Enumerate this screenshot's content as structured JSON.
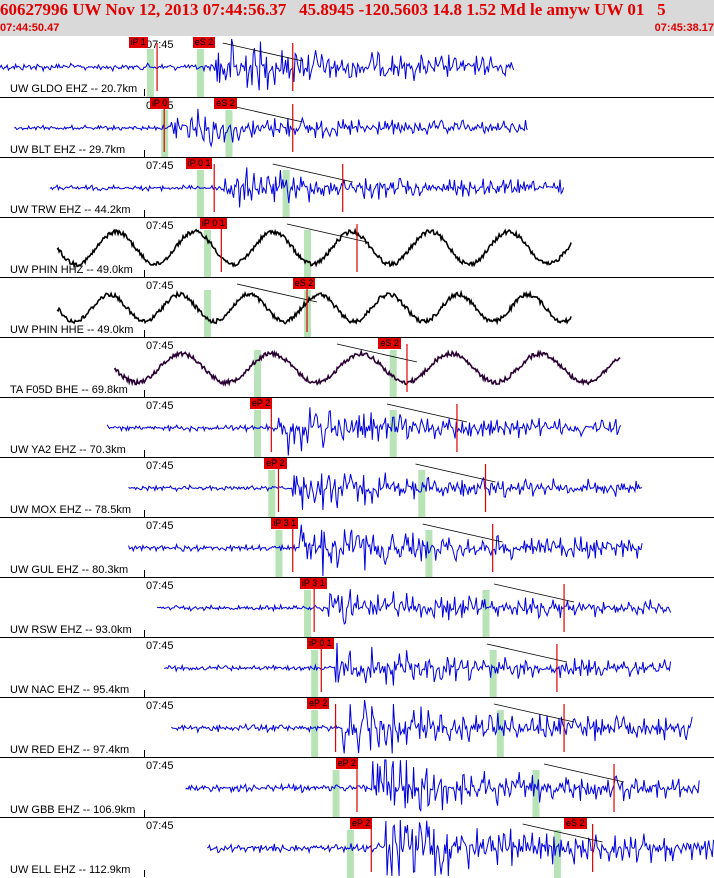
{
  "header": {
    "title": "60627996 UW Nov 12, 2013 07:44:56.37   45.8945 -120.5603 14.8 1.52 Md le amyw UW 01   5",
    "time_start": "07:44:50.47",
    "time_end": "07:45:38.17"
  },
  "colors": {
    "header_bg": "#d9d9d9",
    "header_text": "#e00000",
    "trace_blue": "#0000dd",
    "trace_black": "#000000",
    "trace_dark_purple": "#2a0033",
    "pick_red": "#e00000",
    "window_green": "#b7e3b7"
  },
  "tick_label": "07:45",
  "traces": [
    {
      "label": "UW GLDO EHZ -- 20.7km",
      "color": "blue",
      "start": 0.0,
      "end": 0.72,
      "amp": 12,
      "freq": 1.6,
      "event": 0.3,
      "picks": [
        {
          "text": "iP 1",
          "pos": 0.18
        },
        {
          "text": "eS 2",
          "pos": 0.27
        }
      ],
      "green": [
        0.21,
        0.28
      ],
      "red_lines": [
        0.22,
        0.41
      ]
    },
    {
      "label": "UW BLT EHZ -- 29.7km",
      "color": "blue",
      "start": 0.02,
      "end": 0.74,
      "amp": 8,
      "freq": 1.6,
      "event": 0.24,
      "picks": [
        {
          "text": "iP 0",
          "pos": 0.21
        },
        {
          "text": "eS 2",
          "pos": 0.3
        }
      ],
      "green": [
        0.23,
        0.32
      ],
      "red_lines": [
        0.23,
        0.41
      ]
    },
    {
      "label": "UW TRW EHZ -- 44.2km",
      "color": "blue",
      "start": 0.07,
      "end": 0.79,
      "amp": 9,
      "freq": 1.7,
      "event": 0.31,
      "picks": [
        {
          "text": "iP 0 1",
          "pos": 0.26
        }
      ],
      "green": [
        0.28,
        0.4
      ],
      "red_lines": [
        0.3,
        0.48
      ]
    },
    {
      "label": "UW PHIN HHZ -- 49.0km",
      "color": "black",
      "start": 0.08,
      "end": 0.8,
      "amp": 18,
      "freq": 0.08,
      "event": 0.45,
      "picks": [
        {
          "text": "iP 0 1",
          "pos": 0.28
        }
      ],
      "green": [
        0.29,
        0.43
      ],
      "red_lines": [
        0.31,
        0.5
      ]
    },
    {
      "label": "UW PHIN HHE -- 49.0km",
      "color": "black",
      "start": 0.08,
      "end": 0.8,
      "amp": 15,
      "freq": 0.09,
      "event": 0.45,
      "picks": [
        {
          "text": "eS 2",
          "pos": 0.41
        }
      ],
      "green": [
        0.29,
        0.43
      ],
      "red_lines": [
        0.43
      ]
    },
    {
      "label": "TA F05D BHE -- 69.8km",
      "color": "dark_purple",
      "start": 0.16,
      "end": 0.87,
      "amp": 16,
      "freq": 0.07,
      "event": 0.58,
      "picks": [
        {
          "text": "eS 2",
          "pos": 0.53
        }
      ],
      "green": [
        0.36,
        0.55
      ],
      "red_lines": [
        0.57
      ]
    },
    {
      "label": "UW YA2 EHZ -- 70.3km",
      "color": "blue",
      "start": 0.15,
      "end": 0.87,
      "amp": 10,
      "freq": 1.6,
      "event": 0.39,
      "picks": [
        {
          "text": "eP 2",
          "pos": 0.35
        }
      ],
      "green": [
        0.36,
        0.55
      ],
      "red_lines": [
        0.38,
        0.64
      ]
    },
    {
      "label": "UW MOX EHZ -- 78.5km",
      "color": "blue",
      "start": 0.18,
      "end": 0.9,
      "amp": 9,
      "freq": 1.6,
      "event": 0.41,
      "picks": [
        {
          "text": "eP 2",
          "pos": 0.37
        }
      ],
      "green": [
        0.38,
        0.59
      ],
      "red_lines": [
        0.39,
        0.68
      ]
    },
    {
      "label": "UW GUL EHZ -- 80.3km",
      "color": "blue",
      "start": 0.18,
      "end": 0.9,
      "amp": 11,
      "freq": 1.7,
      "event": 0.42,
      "picks": [
        {
          "text": "iP 3 1",
          "pos": 0.38
        }
      ],
      "green": [
        0.39,
        0.6
      ],
      "red_lines": [
        0.41,
        0.69
      ]
    },
    {
      "label": "UW RSW EHZ -- 93.0km",
      "color": "blue",
      "start": 0.22,
      "end": 0.94,
      "amp": 9,
      "freq": 1.7,
      "event": 0.46,
      "picks": [
        {
          "text": "iP 3 1",
          "pos": 0.42
        }
      ],
      "green": [
        0.43,
        0.68
      ],
      "red_lines": [
        0.44,
        0.79
      ]
    },
    {
      "label": "UW NAC EHZ -- 95.4km",
      "color": "blue",
      "start": 0.23,
      "end": 0.94,
      "amp": 9,
      "freq": 1.7,
      "event": 0.47,
      "picks": [
        {
          "text": "iP 0 1",
          "pos": 0.43
        }
      ],
      "green": [
        0.44,
        0.69
      ],
      "red_lines": [
        0.45,
        0.78
      ]
    },
    {
      "label": "UW RED EHZ -- 97.4km",
      "color": "blue",
      "start": 0.24,
      "end": 0.97,
      "amp": 12,
      "freq": 1.8,
      "event": 0.48,
      "picks": [
        {
          "text": "eP 2",
          "pos": 0.43
        }
      ],
      "green": [
        0.44,
        0.7
      ],
      "red_lines": [
        0.47,
        0.79
      ]
    },
    {
      "label": "UW GBB EHZ -- 106.9km",
      "color": "blue",
      "start": 0.26,
      "end": 0.98,
      "amp": 13,
      "freq": 1.9,
      "event": 0.52,
      "picks": [
        {
          "text": "eP 2",
          "pos": 0.47
        }
      ],
      "green": [
        0.47,
        0.75
      ],
      "red_lines": [
        0.5,
        0.86
      ]
    },
    {
      "label": "UW ELL EHZ -- 112.9km",
      "color": "blue",
      "start": 0.29,
      "end": 1.0,
      "amp": 14,
      "freq": 1.9,
      "event": 0.54,
      "picks": [
        {
          "text": "eP 2",
          "pos": 0.49
        },
        {
          "text": "eS 2",
          "pos": 0.79
        }
      ],
      "green": [
        0.49,
        0.78
      ],
      "red_lines": [
        0.52,
        0.83
      ]
    }
  ]
}
